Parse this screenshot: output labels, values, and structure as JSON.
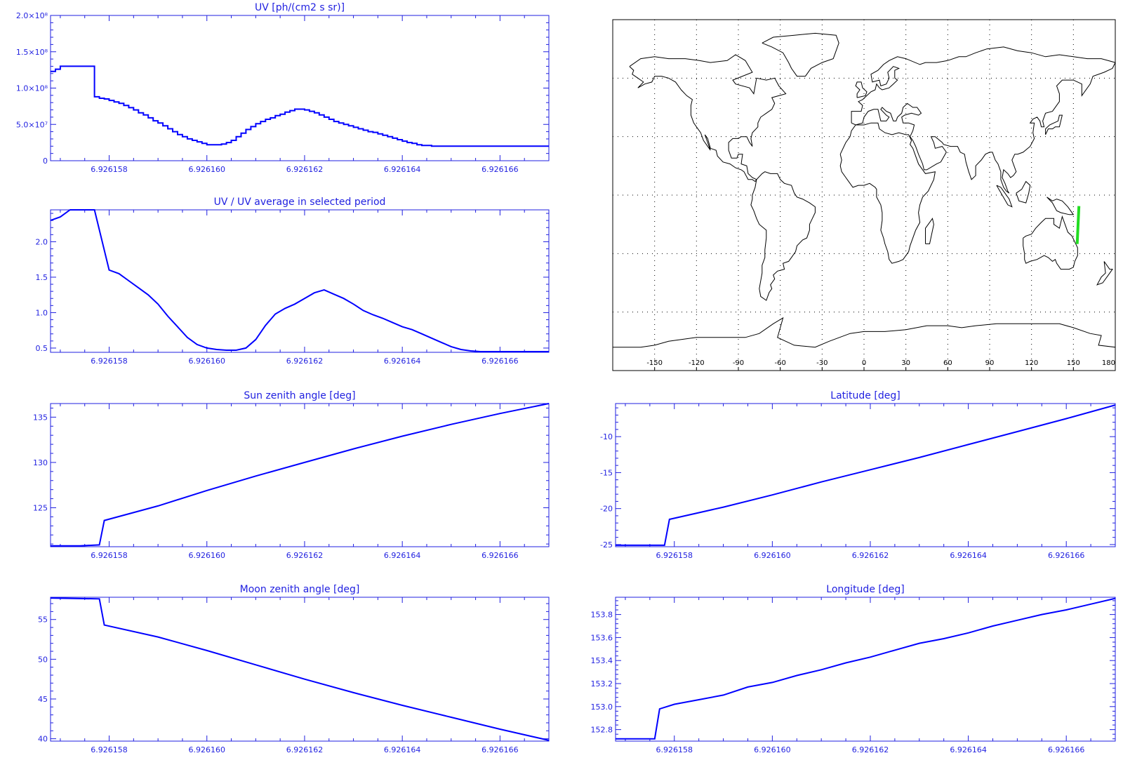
{
  "colors": {
    "axis": "#1f1fe0",
    "line": "#0000ff",
    "map": "#000000",
    "track": "#22dd22",
    "grid": "#000000"
  },
  "chart_data": [
    {
      "id": "uv",
      "type": "line",
      "step": true,
      "title": "UV [ph/(cm2 s sr)]",
      "xlim": [
        6.9261568,
        6.926167
      ],
      "ylim": [
        0,
        200000000
      ],
      "xticks": [
        6.926158,
        6.92616,
        6.926162,
        6.926164,
        6.926166
      ],
      "xtick_labels": [
        "6.926158",
        "6.926160",
        "6.926162",
        "6.926164",
        "6.926166"
      ],
      "yticks": [
        0,
        50000000,
        100000000,
        150000000,
        200000000
      ],
      "ytick_labels": [
        "0",
        "5.0×10⁷",
        "1.0×10⁸",
        "1.5×10⁸",
        "2.0×10⁸"
      ],
      "x": [
        6.9261568,
        6.9261569,
        6.926157,
        6.9261573,
        6.9261576,
        6.9261577,
        6.9261578,
        6.9261579,
        6.926158,
        6.9261581,
        6.9261582,
        6.9261583,
        6.9261584,
        6.9261585,
        6.9261586,
        6.9261587,
        6.9261588,
        6.9261589,
        6.926159,
        6.9261591,
        6.9261592,
        6.9261593,
        6.9261594,
        6.9261595,
        6.9261596,
        6.9261597,
        6.9261598,
        6.9261599,
        6.92616,
        6.9261601,
        6.9261602,
        6.9261603,
        6.9261604,
        6.9261605,
        6.9261606,
        6.9261607,
        6.9261608,
        6.9261609,
        6.926161,
        6.9261611,
        6.9261612,
        6.9261613,
        6.9261614,
        6.9261615,
        6.9261616,
        6.9261617,
        6.9261618,
        6.9261619,
        6.926162,
        6.9261621,
        6.9261622,
        6.9261623,
        6.9261624,
        6.9261625,
        6.9261626,
        6.9261627,
        6.9261628,
        6.9261629,
        6.926163,
        6.9261631,
        6.9261632,
        6.9261633,
        6.9261634,
        6.9261635,
        6.9261636,
        6.9261637,
        6.9261638,
        6.9261639,
        6.926164,
        6.9261641,
        6.9261642,
        6.9261643,
        6.9261644,
        6.9261645,
        6.9261646,
        6.9261647,
        6.9261648,
        6.9261649,
        6.926165,
        6.9261651,
        6.9261652,
        6.9261653,
        6.9261654,
        6.9261655,
        6.9261656,
        6.9261657,
        6.9261658,
        6.9261659,
        6.926166,
        6.9261661,
        6.9261662,
        6.9261663,
        6.926167
      ],
      "y": [
        123000000,
        126000000,
        130000000,
        130000000,
        130000000,
        88000000,
        86000000,
        85000000,
        83000000,
        81000000,
        79000000,
        76000000,
        73000000,
        70000000,
        66000000,
        63000000,
        59000000,
        55000000,
        52000000,
        48000000,
        44000000,
        40000000,
        36000000,
        33000000,
        30000000,
        28000000,
        26000000,
        24000000,
        22000000,
        22000000,
        22000000,
        23000000,
        25000000,
        28000000,
        33000000,
        38000000,
        43000000,
        47000000,
        51000000,
        54000000,
        57000000,
        59000000,
        62000000,
        64000000,
        67000000,
        69000000,
        71000000,
        71000000,
        70000000,
        68000000,
        66000000,
        63000000,
        60000000,
        57000000,
        54000000,
        52000000,
        50000000,
        48000000,
        46000000,
        44000000,
        42000000,
        40000000,
        39000000,
        37000000,
        35000000,
        33000000,
        31000000,
        29000000,
        27000000,
        25000000,
        24000000,
        22000000,
        21000000,
        21000000,
        20000000,
        20000000,
        20000000,
        20000000,
        20000000,
        20000000,
        20000000,
        20000000,
        20000000,
        20000000,
        20000000,
        20000000,
        20000000,
        20000000,
        20000000,
        20000000,
        20000000,
        20000000,
        20000000
      ]
    },
    {
      "id": "uv-ratio",
      "type": "line",
      "title": "UV / UV average in selected period",
      "xlim": [
        6.9261568,
        6.926167
      ],
      "ylim": [
        0.44,
        2.45
      ],
      "xticks": [
        6.926158,
        6.92616,
        6.926162,
        6.926164,
        6.926166
      ],
      "xtick_labels": [
        "6.926158",
        "6.926160",
        "6.926162",
        "6.926164",
        "6.926166"
      ],
      "yticks": [
        0.5,
        1.0,
        1.5,
        2.0
      ],
      "ytick_labels": [
        "0.5",
        "1.0",
        "1.5",
        "2.0"
      ],
      "x": [
        6.9261568,
        6.926157,
        6.9261572,
        6.9261575,
        6.9261576,
        6.9261577,
        6.926158,
        6.9261582,
        6.9261584,
        6.9261586,
        6.9261588,
        6.926159,
        6.9261592,
        6.9261594,
        6.9261596,
        6.9261598,
        6.92616,
        6.9261602,
        6.9261604,
        6.9261606,
        6.9261608,
        6.926161,
        6.9261612,
        6.9261614,
        6.9261616,
        6.9261618,
        6.926162,
        6.9261622,
        6.9261624,
        6.9261626,
        6.9261628,
        6.926163,
        6.9261632,
        6.9261634,
        6.9261636,
        6.9261638,
        6.926164,
        6.9261642,
        6.9261644,
        6.9261646,
        6.9261648,
        6.926165,
        6.9261652,
        6.9261654,
        6.9261656,
        6.9261658,
        6.926166,
        6.9261662,
        6.9261664,
        6.9261666,
        6.9261668,
        6.926167
      ],
      "y": [
        2.3,
        2.35,
        2.45,
        2.45,
        2.45,
        2.45,
        1.6,
        1.55,
        1.45,
        1.35,
        1.25,
        1.12,
        0.95,
        0.8,
        0.65,
        0.55,
        0.5,
        0.48,
        0.47,
        0.47,
        0.5,
        0.62,
        0.82,
        0.98,
        1.06,
        1.12,
        1.2,
        1.28,
        1.32,
        1.26,
        1.2,
        1.12,
        1.03,
        0.97,
        0.92,
        0.86,
        0.8,
        0.76,
        0.7,
        0.64,
        0.58,
        0.52,
        0.48,
        0.46,
        0.45,
        0.45,
        0.45,
        0.45,
        0.45,
        0.45,
        0.45,
        0.45
      ]
    },
    {
      "id": "sun-zenith",
      "type": "line",
      "title": "Sun zenith angle [deg]",
      "xlim": [
        6.9261568,
        6.926167
      ],
      "ylim": [
        120.7,
        136.5
      ],
      "xticks": [
        6.926158,
        6.92616,
        6.926162,
        6.926164,
        6.926166
      ],
      "xtick_labels": [
        "6.926158",
        "6.926160",
        "6.926162",
        "6.926164",
        "6.926166"
      ],
      "yticks": [
        125,
        130,
        135
      ],
      "ytick_labels": [
        "125",
        "130",
        "135"
      ],
      "x": [
        6.9261568,
        6.9261574,
        6.9261578,
        6.9261579,
        6.926159,
        6.92616,
        6.926161,
        6.926162,
        6.926163,
        6.926164,
        6.926165,
        6.926166,
        6.926167
      ],
      "y": [
        120.8,
        120.8,
        120.9,
        123.6,
        125.2,
        126.9,
        128.5,
        130.0,
        131.5,
        132.9,
        134.2,
        135.4,
        136.5
      ]
    },
    {
      "id": "latitude",
      "type": "line",
      "title": "Latitude [deg]",
      "xlim": [
        6.9261568,
        6.926167
      ],
      "ylim": [
        -25.3,
        -5.4
      ],
      "xticks": [
        6.926158,
        6.92616,
        6.926162,
        6.926164,
        6.926166
      ],
      "xtick_labels": [
        "6.926158",
        "6.926160",
        "6.926162",
        "6.926164",
        "6.926166"
      ],
      "yticks": [
        -25,
        -20,
        -15,
        -10
      ],
      "ytick_labels": [
        "-25",
        "-20",
        "-15",
        "-10"
      ],
      "x": [
        6.9261568,
        6.9261578,
        6.9261579,
        6.926159,
        6.92616,
        6.926161,
        6.926162,
        6.926163,
        6.926164,
        6.926165,
        6.926166,
        6.926167
      ],
      "y": [
        -25.1,
        -25.1,
        -21.5,
        -19.8,
        -18.1,
        -16.3,
        -14.6,
        -12.9,
        -11.1,
        -9.3,
        -7.5,
        -5.6
      ]
    },
    {
      "id": "moon-zenith",
      "type": "line",
      "title": "Moon zenith angle [deg]",
      "xlim": [
        6.9261568,
        6.926167
      ],
      "ylim": [
        39.7,
        57.8
      ],
      "xticks": [
        6.926158,
        6.92616,
        6.926162,
        6.926164,
        6.926166
      ],
      "xtick_labels": [
        "6.926158",
        "6.926160",
        "6.926162",
        "6.926164",
        "6.926166"
      ],
      "yticks": [
        40,
        45,
        50,
        55
      ],
      "ytick_labels": [
        "40",
        "45",
        "50",
        "55"
      ],
      "x": [
        6.9261568,
        6.9261578,
        6.9261579,
        6.926159,
        6.92616,
        6.926161,
        6.926162,
        6.926163,
        6.926164,
        6.926165,
        6.926166,
        6.926167
      ],
      "y": [
        57.7,
        57.6,
        54.3,
        52.8,
        51.1,
        49.3,
        47.5,
        45.8,
        44.2,
        42.7,
        41.2,
        39.8
      ]
    },
    {
      "id": "longitude",
      "type": "line",
      "title": "Longitude [deg]",
      "xlim": [
        6.9261568,
        6.926167
      ],
      "ylim": [
        152.7,
        153.95
      ],
      "xticks": [
        6.926158,
        6.92616,
        6.926162,
        6.926164,
        6.926166
      ],
      "xtick_labels": [
        "6.926158",
        "6.926160",
        "6.926162",
        "6.926164",
        "6.926166"
      ],
      "yticks": [
        152.8,
        153.0,
        153.2,
        153.4,
        153.6,
        153.8
      ],
      "ytick_labels": [
        "152.8",
        "153.0",
        "153.2",
        "153.4",
        "153.6",
        "153.8"
      ],
      "x": [
        6.9261568,
        6.9261576,
        6.9261577,
        6.926158,
        6.9261585,
        6.926159,
        6.9261595,
        6.92616,
        6.9261605,
        6.926161,
        6.9261615,
        6.926162,
        6.9261625,
        6.926163,
        6.9261635,
        6.926164,
        6.9261645,
        6.926165,
        6.9261655,
        6.926166,
        6.9261665,
        6.926167
      ],
      "y": [
        152.72,
        152.72,
        152.98,
        153.02,
        153.06,
        153.1,
        153.17,
        153.21,
        153.27,
        153.32,
        153.38,
        153.43,
        153.49,
        153.55,
        153.59,
        153.64,
        153.7,
        153.75,
        153.8,
        153.84,
        153.89,
        153.94
      ]
    }
  ],
  "map": {
    "lon_ticks": [
      -150,
      -120,
      -90,
      -60,
      -30,
      0,
      30,
      60,
      90,
      120,
      150,
      180
    ],
    "lon_tick_labels": [
      "-150",
      "-120",
      "-90",
      "-60",
      "-30",
      "0",
      "30",
      "60",
      "90",
      "120",
      "150",
      "180"
    ],
    "lon_range": [
      -180,
      180
    ],
    "lat_range": [
      -90,
      90
    ],
    "grid_lons": [
      -150,
      -120,
      -90,
      -60,
      -30,
      0,
      30,
      60,
      90,
      120,
      150
    ],
    "grid_lats": [
      -60,
      -30,
      0,
      30,
      60
    ],
    "track": [
      [
        153.94,
        -5.6
      ],
      [
        152.72,
        -25.1
      ]
    ]
  }
}
